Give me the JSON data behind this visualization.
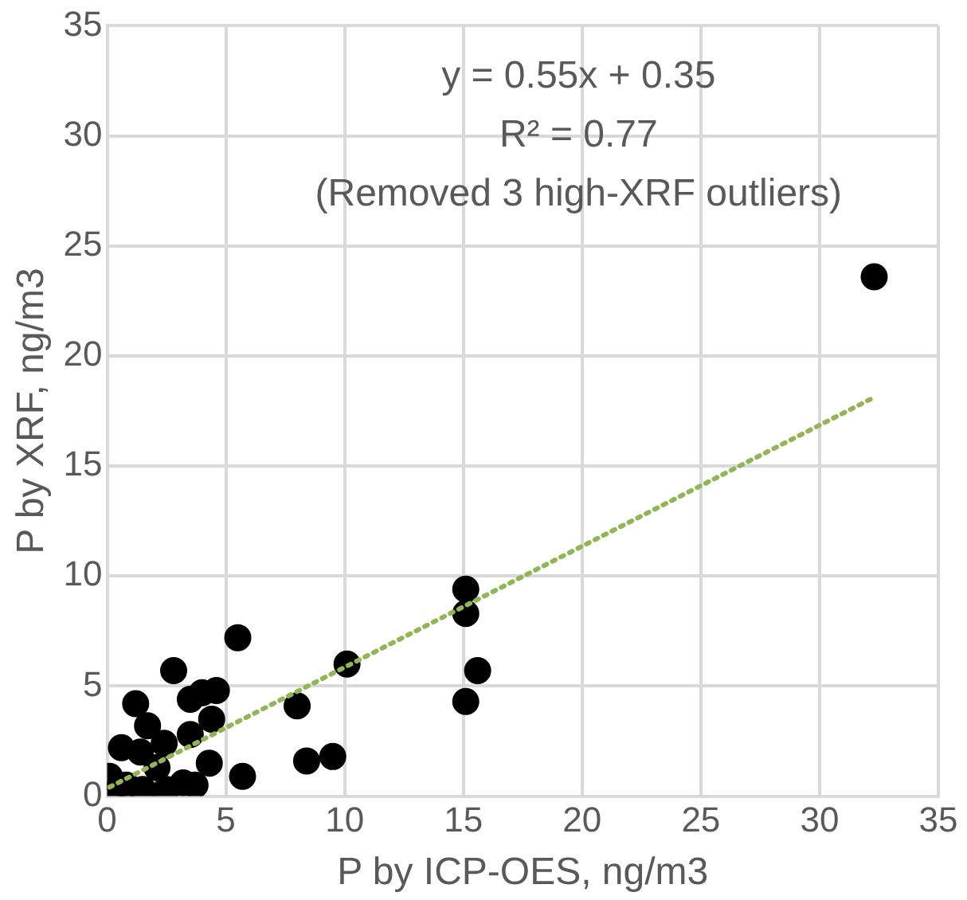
{
  "chart_data": {
    "type": "scatter",
    "xlabel": "P by ICP-OES, ng/m3",
    "ylabel": "P by XRF, ng/m3",
    "annotations": [
      "y = 0.55x + 0.35",
      "R² = 0.77",
      "(Removed 3 high-XRF outliers)"
    ],
    "xlim": [
      0,
      35
    ],
    "xticks": [
      0,
      5,
      10,
      15,
      20,
      25,
      30,
      35
    ],
    "ylim": [
      0,
      35
    ],
    "yticks": [
      0,
      5,
      10,
      15,
      20,
      25,
      30,
      35
    ],
    "grid": true,
    "legend": false,
    "marker": "circle",
    "series": [
      {
        "color": "#000000",
        "x": [
          5.5,
          2.8,
          1.2,
          3.5,
          4.0,
          4.6,
          4.4,
          8.0,
          1.7,
          2.4,
          3.5,
          0.6,
          4.3,
          8.4,
          9.5,
          5.7,
          10.1,
          0.1,
          0.2,
          2.5,
          3.2,
          3.7,
          1.5,
          0.8,
          2.1,
          1.4,
          15.1,
          15.1,
          15.6,
          15.1,
          32.3
        ],
        "values": [
          7.2,
          5.7,
          4.2,
          4.4,
          4.7,
          4.8,
          3.5,
          4.1,
          3.2,
          2.4,
          2.8,
          2.2,
          1.5,
          1.6,
          1.8,
          0.9,
          6.0,
          0.9,
          0.1,
          0.3,
          0.6,
          0.5,
          0.3,
          0.5,
          1.3,
          2.0,
          9.4,
          8.3,
          5.7,
          4.3,
          23.6
        ]
      },
      {
        "type": "line",
        "color": "#92b555",
        "line_style": "dotted",
        "marker": "none",
        "x": [
          0.1,
          32.3
        ],
        "values": [
          0.41,
          18.12
        ]
      }
    ]
  }
}
